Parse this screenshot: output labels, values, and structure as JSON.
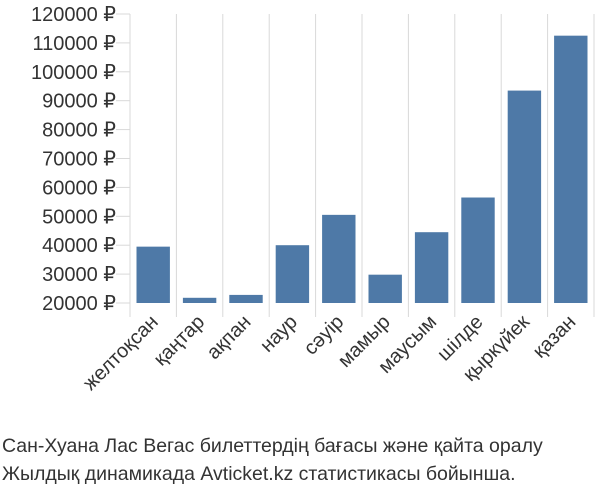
{
  "chart_data": {
    "type": "bar",
    "categories": [
      "желтоқсан",
      "қаңтар",
      "ақпан",
      "наур",
      "сәуір",
      "мамыр",
      "маусым",
      "шілде",
      "қыркүйек",
      "қазан"
    ],
    "values": [
      39500,
      21800,
      22800,
      40000,
      50500,
      29800,
      44500,
      56500,
      93500,
      112500
    ],
    "ylim": [
      20000,
      120000
    ],
    "yticks": [
      20000,
      30000,
      40000,
      50000,
      60000,
      70000,
      80000,
      90000,
      100000,
      110000,
      120000
    ],
    "currency": "₽",
    "bar_color": "#4e79a7",
    "grid": "vertical",
    "xlabel": "",
    "ylabel": ""
  },
  "caption": {
    "line1": "Сан-Хуана Лас Вегас билеттердің бағасы және қайта оралу",
    "line2": "Жылдық динамикада Avticket.kz статистикасы бойынша."
  }
}
